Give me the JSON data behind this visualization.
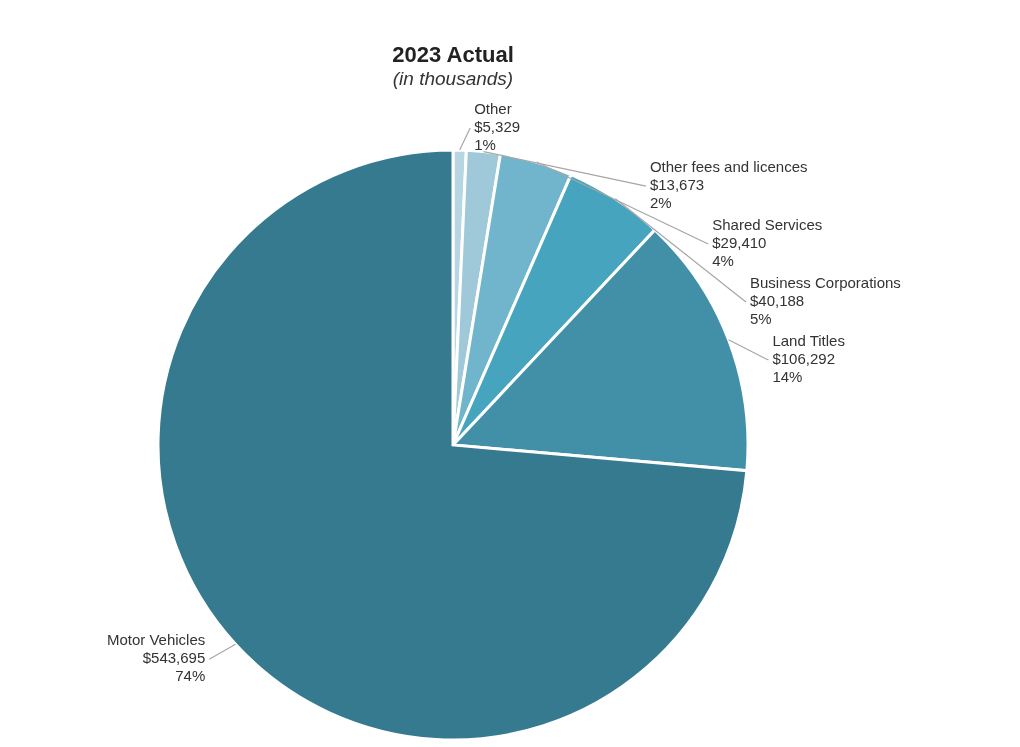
{
  "chart_data": {
    "type": "pie",
    "title": "2023 Actual",
    "subtitle": "(in thousands)",
    "categories": [
      "Other",
      "Other fees and licences",
      "Shared Services",
      "Business Corporations",
      "Land Titles",
      "Motor Vehicles"
    ],
    "values": [
      5329,
      13673,
      29410,
      40188,
      106292,
      543695
    ],
    "value_labels": [
      "$5,329\n1%",
      "$13,673\n2%",
      "$29,410\n4%",
      "$40,188\n5%",
      "$106,292\n14%",
      "$543,695\n74%"
    ],
    "colors": [
      "#b8d6e2",
      "#9fc8d8",
      "#70b5cc",
      "#47a4be",
      "#4190a8",
      "#357a8e"
    ]
  }
}
